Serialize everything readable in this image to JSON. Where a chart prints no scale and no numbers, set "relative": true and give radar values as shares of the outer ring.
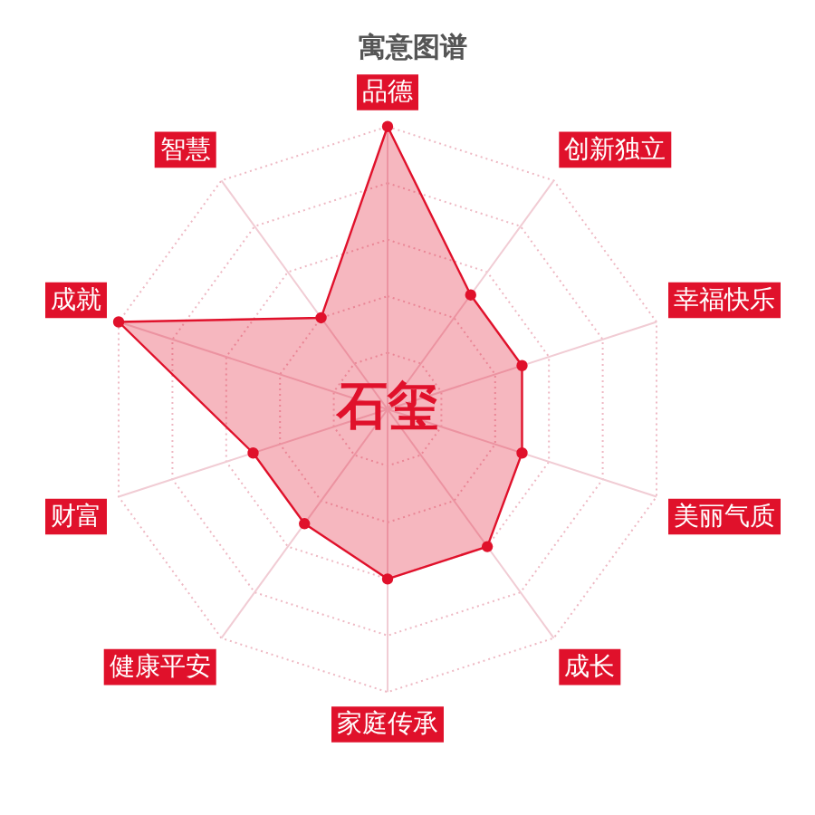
{
  "chart_data": {
    "type": "radar",
    "title": "寓意图谱",
    "categories": [
      "品德",
      "创新独立",
      "幸福快乐",
      "美丽气质",
      "成长",
      "家庭传承",
      "健康平安",
      "财富",
      "成就",
      "智慧"
    ],
    "relative": true,
    "series": [
      {
        "color": "#e0112b",
        "values": [
          1,
          0.5,
          0.5,
          0.5,
          0.6,
          0.6,
          0.5,
          0.5,
          1,
          0.4
        ]
      }
    ],
    "annotations": [
      "石玺"
    ],
    "grid": true,
    "marker": "circle"
  }
}
